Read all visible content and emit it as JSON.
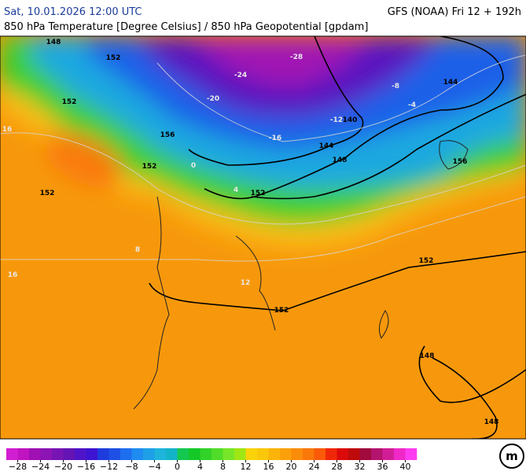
{
  "header": {
    "datetime": "Sat, 10.01.2026 12:00 UTC",
    "model": "GFS (NOAA) Fri 12 + 192h",
    "subtitle": "850 hPa Temperature [Degree Celsius] / 850 hPa Geopotential [gpdam]"
  },
  "map": {
    "height_labels": [
      148,
      152,
      152,
      152,
      156,
      152,
      144,
      140,
      144,
      148,
      152,
      156,
      152,
      152,
      148,
      148
    ],
    "temperature_labels": [
      {
        "value": -28,
        "label": "-28"
      },
      {
        "value": -24,
        "label": "-24"
      },
      {
        "value": -20,
        "label": "-20"
      },
      {
        "value": -16,
        "label": "-16"
      },
      {
        "value": -12,
        "label": "-12"
      },
      {
        "value": -8,
        "label": "-8"
      },
      {
        "value": -4,
        "label": "-4"
      },
      0,
      4,
      8,
      12,
      16,
      16
    ]
  },
  "colorbar": {
    "lim": [
      -30,
      42
    ],
    "colors": [
      "#d21ed2",
      "#c014c0",
      "#a010b4",
      "#8c14b4",
      "#7814b4",
      "#6414b4",
      "#5014c8",
      "#3c14d2",
      "#1e3cdc",
      "#1e50e6",
      "#1e6ef0",
      "#1e8cf0",
      "#1ea0e6",
      "#1eb4dc",
      "#14b4c8",
      "#14c850",
      "#14c828",
      "#32d228",
      "#50dc28",
      "#78e628",
      "#a0e614",
      "#fad20a",
      "#fac80a",
      "#fab40a",
      "#faa00a",
      "#fa8c0a",
      "#fa780a",
      "#fa5a0a",
      "#f0280a",
      "#dc0a0a",
      "#be0a0a",
      "#a00a3c",
      "#b4146e",
      "#d21e96",
      "#f028c8",
      "#ff3cf0"
    ],
    "ticks": [
      {
        "value": -28,
        "label": "−28"
      },
      {
        "value": -24,
        "label": "−24"
      },
      {
        "value": -20,
        "label": "−20"
      },
      {
        "value": -16,
        "label": "−16"
      },
      {
        "value": -12,
        "label": "−12"
      },
      {
        "value": -8,
        "label": "−8"
      },
      {
        "value": -4,
        "label": "−4"
      },
      0,
      4,
      8,
      12,
      16,
      20,
      24,
      28,
      32,
      36,
      40
    ]
  }
}
